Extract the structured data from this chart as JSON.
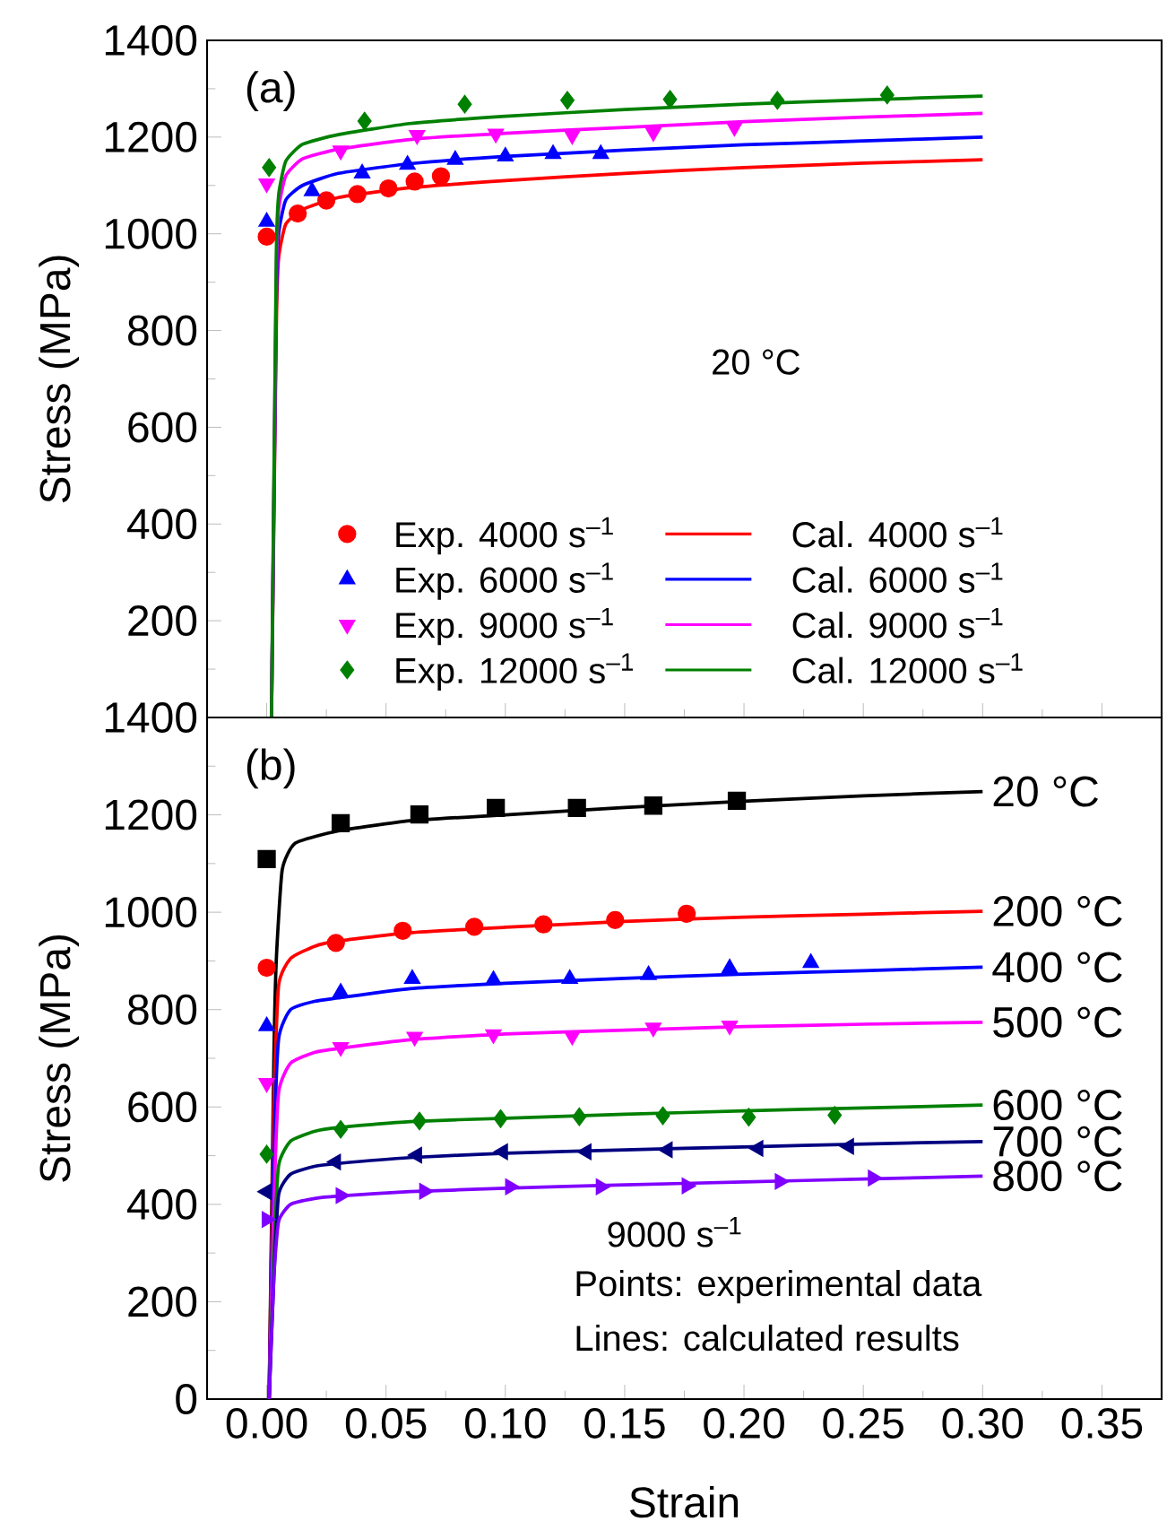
{
  "chart_data": [
    {
      "type": "line",
      "ylabel": "Stress (MPa)",
      "xlim": [
        -0.025,
        0.375
      ],
      "ylim": [
        0,
        1400
      ],
      "xticks": [
        {
          "value": 0,
          "label": null
        },
        {
          "value": 0.05,
          "label": null
        },
        {
          "value": 0.1,
          "label": null
        },
        {
          "value": 0.15,
          "label": null
        },
        {
          "value": 0.2,
          "label": null
        },
        {
          "value": 0.25,
          "label": null
        },
        {
          "value": 0.3,
          "label": null
        },
        {
          "value": 0.35,
          "label": null
        }
      ],
      "yticks": [
        {
          "value": 0,
          "label": null
        },
        200,
        400,
        600,
        800,
        1000,
        1200,
        1400
      ],
      "tick_labels": "y",
      "legend": "bottom",
      "annotations": [
        "(a)",
        "20 °C"
      ],
      "series": [
        {
          "name": "Exp. 4000 s$^{–1}$",
          "type": "scatter",
          "marker": "circle",
          "color": "#ff0000",
          "x": [
            0.0,
            0.013,
            0.025,
            0.038,
            0.051,
            0.062,
            0.073
          ],
          "values": [
            994,
            1042,
            1069,
            1082,
            1094,
            1108,
            1119
          ]
        },
        {
          "name": "Cal. 4000 s$^{–1}$",
          "type": "line",
          "color": "#ff0000",
          "x": [
            0.002,
            0.004,
            0.005,
            0.008,
            0.015,
            0.03,
            0.06,
            0.1,
            0.15,
            0.2,
            0.25,
            0.3
          ],
          "values": [
            0,
            800,
            950,
            1020,
            1050,
            1075,
            1095,
            1110,
            1125,
            1137,
            1146,
            1153
          ]
        },
        {
          "name": "Exp. 6000 s$^{–1}$",
          "type": "scatter",
          "marker": "triangle",
          "color": "#0000ff",
          "x": [
            0.0,
            0.019,
            0.04,
            0.059,
            0.079,
            0.1,
            0.12,
            0.14
          ],
          "values": [
            1025,
            1088,
            1125,
            1143,
            1153,
            1160,
            1165,
            1165
          ]
        },
        {
          "name": "Cal. 6000 s$^{–1}$",
          "type": "line",
          "color": "#0000ff",
          "x": [
            0.002,
            0.004,
            0.005,
            0.008,
            0.015,
            0.03,
            0.06,
            0.1,
            0.15,
            0.2,
            0.25,
            0.3
          ],
          "values": [
            0,
            850,
            1000,
            1070,
            1100,
            1125,
            1145,
            1160,
            1173,
            1184,
            1192,
            1200
          ]
        },
        {
          "name": "Exp. 9000 s$^{–1}$",
          "type": "scatter",
          "marker": "triangle-down",
          "color": "#ff00ff",
          "x": [
            0.0,
            0.031,
            0.063,
            0.096,
            0.128,
            0.162,
            0.196
          ],
          "values": [
            1104,
            1172,
            1204,
            1207,
            1204,
            1210,
            1221
          ]
        },
        {
          "name": "Cal. 9000 s$^{–1}$",
          "type": "line",
          "color": "#ff00ff",
          "x": [
            0.002,
            0.004,
            0.005,
            0.008,
            0.015,
            0.03,
            0.06,
            0.1,
            0.15,
            0.2,
            0.25,
            0.3
          ],
          "values": [
            0,
            900,
            1050,
            1120,
            1155,
            1175,
            1195,
            1208,
            1220,
            1232,
            1241,
            1249
          ]
        },
        {
          "name": "Exp. 12000 s$^{–1}$",
          "type": "scatter",
          "marker": "diamond",
          "color": "#008000",
          "x": [
            0.001,
            0.041,
            0.083,
            0.126,
            0.169,
            0.214,
            0.26
          ],
          "values": [
            1137,
            1233,
            1268,
            1276,
            1278,
            1276,
            1287
          ]
        },
        {
          "name": "Cal. 12000 s$^{–1}$",
          "type": "line",
          "color": "#008000",
          "x": [
            0.002,
            0.004,
            0.005,
            0.008,
            0.015,
            0.03,
            0.06,
            0.1,
            0.15,
            0.2,
            0.25,
            0.3
          ],
          "values": [
            0,
            950,
            1080,
            1150,
            1185,
            1205,
            1228,
            1243,
            1257,
            1268,
            1277,
            1285
          ]
        }
      ]
    },
    {
      "type": "line",
      "xlabel": "Strain",
      "ylabel": "Stress (MPa)",
      "xlim": [
        -0.025,
        0.375
      ],
      "ylim": [
        0,
        1400
      ],
      "xticks": [
        {
          "value": 0,
          "label": "0.00"
        },
        {
          "value": 0.05,
          "label": "0.05"
        },
        {
          "value": 0.1,
          "label": "0.10"
        },
        {
          "value": 0.15,
          "label": "0.15"
        },
        {
          "value": 0.2,
          "label": "0.20"
        },
        {
          "value": 0.25,
          "label": "0.25"
        },
        {
          "value": 0.3,
          "label": "0.30"
        },
        {
          "value": 0.35,
          "label": "0.35"
        }
      ],
      "yticks": [
        0,
        200,
        400,
        600,
        800,
        1000,
        1200,
        1400
      ],
      "annotations": [
        "(b)",
        "9000 s$^{–1}$",
        "Points: experimental data",
        "Lines: calculated results"
      ],
      "series": [
        {
          "type": "scatter",
          "marker": "square",
          "color": "#000000",
          "x": [
            0.0,
            0.031,
            0.064,
            0.096,
            0.13,
            0.162,
            0.197
          ],
          "values": [
            1109,
            1183,
            1201,
            1214,
            1214,
            1219,
            1229
          ]
        },
        {
          "name": "20 °C",
          "type": "line",
          "color": "#000000",
          "x": [
            0.001,
            0.003,
            0.004,
            0.0065,
            0.012,
            0.03,
            0.06,
            0.1,
            0.15,
            0.2,
            0.25,
            0.3
          ],
          "values": [
            0,
            700,
            900,
            1087,
            1142,
            1167,
            1188,
            1200,
            1215,
            1228,
            1239,
            1248
          ]
        },
        {
          "type": "scatter",
          "marker": "circle",
          "color": "#ff0000",
          "x": [
            0.0,
            0.029,
            0.057,
            0.087,
            0.116,
            0.146,
            0.176
          ],
          "values": [
            886,
            937,
            962,
            970,
            975,
            984,
            997
          ]
        },
        {
          "name": "200 °C",
          "type": "line",
          "color": "#ff0000",
          "x": [
            0.001,
            0.003,
            0.005,
            0.01,
            0.02,
            0.03,
            0.06,
            0.1,
            0.15,
            0.2,
            0.25,
            0.3
          ],
          "values": [
            0,
            600,
            850,
            905,
            930,
            941,
            958,
            969,
            981,
            990,
            996,
            1002
          ]
        },
        {
          "type": "scatter",
          "marker": "triangle",
          "color": "#0000ff",
          "x": [
            0.0,
            0.031,
            0.061,
            0.095,
            0.127,
            0.16,
            0.194,
            0.228
          ],
          "values": [
            766,
            835,
            863,
            861,
            863,
            871,
            885,
            896
          ]
        },
        {
          "name": "400 °C",
          "type": "line",
          "color": "#0000ff",
          "x": [
            0.001,
            0.003,
            0.005,
            0.01,
            0.02,
            0.03,
            0.06,
            0.1,
            0.15,
            0.2,
            0.25,
            0.3
          ],
          "values": [
            0,
            500,
            740,
            800,
            817,
            824,
            843,
            854,
            864,
            873,
            880,
            887
          ]
        },
        {
          "type": "scatter",
          "marker": "triangle-down",
          "color": "#ff00ff",
          "x": [
            0.0,
            0.031,
            0.062,
            0.095,
            0.128,
            0.162,
            0.194
          ],
          "values": [
            649,
            723,
            744,
            749,
            746,
            763,
            767
          ]
        },
        {
          "name": "500 °C",
          "type": "line",
          "color": "#ff00ff",
          "x": [
            0.001,
            0.003,
            0.005,
            0.01,
            0.02,
            0.03,
            0.06,
            0.1,
            0.15,
            0.2,
            0.25,
            0.3
          ],
          "values": [
            0,
            400,
            630,
            690,
            712,
            720,
            738,
            750,
            758,
            765,
            770,
            774
          ]
        },
        {
          "type": "scatter",
          "marker": "diamond",
          "color": "#008000",
          "x": [
            0.0,
            0.031,
            0.064,
            0.098,
            0.131,
            0.166,
            0.202,
            0.238
          ],
          "values": [
            503,
            554,
            571,
            576,
            580,
            582,
            579,
            583
          ]
        },
        {
          "name": "600 °C",
          "type": "line",
          "color": "#008000",
          "x": [
            0.001,
            0.003,
            0.005,
            0.01,
            0.02,
            0.03,
            0.06,
            0.1,
            0.15,
            0.2,
            0.25,
            0.3
          ],
          "values": [
            0,
            300,
            480,
            530,
            550,
            558,
            570,
            577,
            585,
            592,
            598,
            604
          ]
        },
        {
          "type": "scatter",
          "marker": "triangle-left",
          "color": "#000080",
          "x": [
            0.0,
            0.029,
            0.063,
            0.099,
            0.134,
            0.168,
            0.206,
            0.244
          ],
          "values": [
            426,
            487,
            501,
            508,
            508,
            512,
            515,
            519
          ]
        },
        {
          "name": "700 °C",
          "type": "line",
          "color": "#000080",
          "x": [
            0.001,
            0.003,
            0.005,
            0.01,
            0.02,
            0.03,
            0.06,
            0.1,
            0.15,
            0.2,
            0.25,
            0.3
          ],
          "values": [
            0,
            250,
            420,
            462,
            478,
            484,
            496,
            505,
            512,
            518,
            524,
            529
          ]
        },
        {
          "type": "scatter",
          "marker": "triangle-right",
          "color": "#8000ff",
          "x": [
            0.0,
            0.031,
            0.066,
            0.102,
            0.14,
            0.176,
            0.215,
            0.254
          ],
          "values": [
            369,
            418,
            427,
            436,
            436,
            438,
            447,
            454
          ]
        },
        {
          "name": "800 °C",
          "type": "line",
          "color": "#8000ff",
          "x": [
            0.001,
            0.003,
            0.005,
            0.01,
            0.02,
            0.03,
            0.06,
            0.1,
            0.15,
            0.2,
            0.25,
            0.3
          ],
          "values": [
            0,
            250,
            365,
            400,
            412,
            417,
            426,
            433,
            440,
            446,
            452,
            458
          ]
        }
      ]
    }
  ]
}
